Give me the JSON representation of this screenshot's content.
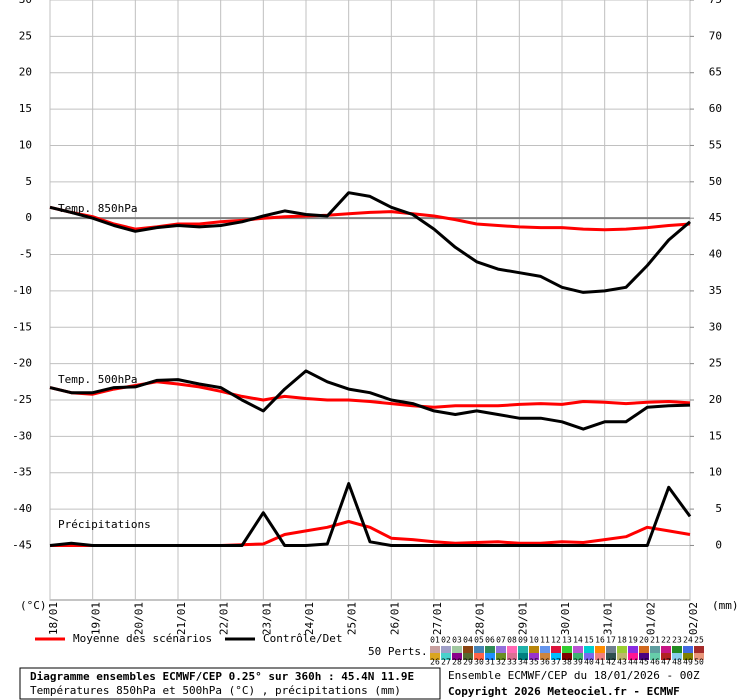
{
  "chart_data": {
    "type": "line",
    "title": "Diagramme ensembles ECMWF/CEP 0.25° sur 360h : 45.4N 11.9E",
    "subtitle": "Températures 850hPa et 500hPa (°C) , précipitations (mm)",
    "run_label": "Ensemble ECMWF/CEP du 18/01/2026 - 00Z",
    "copyright": "Copyright 2026 Meteociel.fr - ECMWF",
    "y_label": "(°C)",
    "y2_label": "(mm)",
    "annotations": [
      "Temp. 850hPa",
      "Temp. 500hPa",
      "Précipitations"
    ],
    "members_label": "50 Perts.",
    "members": [
      {
        "label": "01",
        "color": "#c8a0a0"
      },
      {
        "label": "02",
        "color": "#a0a0c8"
      },
      {
        "label": "03",
        "color": "#a0c8a0"
      },
      {
        "label": "04",
        "color": "#8b4513"
      },
      {
        "label": "05",
        "color": "#4682b4"
      },
      {
        "label": "06",
        "color": "#2e8b57"
      },
      {
        "label": "07",
        "color": "#9370db"
      },
      {
        "label": "08",
        "color": "#ff69b4"
      },
      {
        "label": "09",
        "color": "#20b2aa"
      },
      {
        "label": "10",
        "color": "#b8860b"
      },
      {
        "label": "11",
        "color": "#6495ed"
      },
      {
        "label": "12",
        "color": "#dc143c"
      },
      {
        "label": "13",
        "color": "#32cd32"
      },
      {
        "label": "14",
        "color": "#ba55d3"
      },
      {
        "label": "15",
        "color": "#00ced1"
      },
      {
        "label": "16",
        "color": "#ff8c00"
      },
      {
        "label": "17",
        "color": "#708090"
      },
      {
        "label": "18",
        "color": "#9acd32"
      },
      {
        "label": "19",
        "color": "#8a2be2"
      },
      {
        "label": "20",
        "color": "#d2691e"
      },
      {
        "label": "21",
        "color": "#5f9ea0"
      },
      {
        "label": "22",
        "color": "#c71585"
      },
      {
        "label": "23",
        "color": "#228b22"
      },
      {
        "label": "24",
        "color": "#4169e1"
      },
      {
        "label": "25",
        "color": "#a52a2a"
      },
      {
        "label": "26",
        "color": "#daa520"
      },
      {
        "label": "27",
        "color": "#48d1cc"
      },
      {
        "label": "28",
        "color": "#8b008b"
      },
      {
        "label": "29",
        "color": "#556b2f"
      },
      {
        "label": "30",
        "color": "#ff6347"
      },
      {
        "label": "31",
        "color": "#1e90ff"
      },
      {
        "label": "32",
        "color": "#6b8e23"
      },
      {
        "label": "33",
        "color": "#db7093"
      },
      {
        "label": "34",
        "color": "#008080"
      },
      {
        "label": "35",
        "color": "#9932cc"
      },
      {
        "label": "36",
        "color": "#cd853f"
      },
      {
        "label": "37",
        "color": "#00bfff"
      },
      {
        "label": "38",
        "color": "#800000"
      },
      {
        "label": "39",
        "color": "#3cb371"
      },
      {
        "label": "40",
        "color": "#7b68ee"
      },
      {
        "label": "41",
        "color": "#f08080"
      },
      {
        "label": "42",
        "color": "#2f4f4f"
      },
      {
        "label": "43",
        "color": "#bdb76b"
      },
      {
        "label": "44",
        "color": "#ff1493"
      },
      {
        "label": "45",
        "color": "#4b0082"
      },
      {
        "label": "46",
        "color": "#66cdaa"
      },
      {
        "label": "47",
        "color": "#b22222"
      },
      {
        "label": "48",
        "color": "#87ceeb"
      },
      {
        "label": "49",
        "color": "#808000"
      },
      {
        "label": "50",
        "color": "#e9967a"
      }
    ],
    "x": [
      0,
      12,
      24,
      36,
      48,
      60,
      72,
      84,
      96,
      108,
      120,
      132,
      144,
      156,
      168,
      180,
      192,
      204,
      216,
      228,
      240,
      252,
      264,
      276,
      288,
      300,
      312,
      324,
      336,
      348,
      360
    ],
    "xlim": [
      0,
      360
    ],
    "xticks": [
      {
        "value": 0,
        "label": "18/01"
      },
      {
        "value": 24,
        "label": "19/01"
      },
      {
        "value": 48,
        "label": "20/01"
      },
      {
        "value": 72,
        "label": "21/01"
      },
      {
        "value": 96,
        "label": "22/01"
      },
      {
        "value": 120,
        "label": "23/01"
      },
      {
        "value": 144,
        "label": "24/01"
      },
      {
        "value": 168,
        "label": "25/01"
      },
      {
        "value": 192,
        "label": "26/01"
      },
      {
        "value": 216,
        "label": "27/01"
      },
      {
        "value": 240,
        "label": "28/01"
      },
      {
        "value": 264,
        "label": "29/01"
      },
      {
        "value": 288,
        "label": "30/01"
      },
      {
        "value": 312,
        "label": "31/01"
      },
      {
        "value": 336,
        "label": "01/02"
      },
      {
        "value": 360,
        "label": "02/02"
      }
    ],
    "ylim": [
      -52.5,
      30
    ],
    "yticks": [
      30,
      25,
      20,
      15,
      10,
      5,
      0,
      -5,
      -10,
      -15,
      -20,
      -25,
      -30,
      -35,
      -40,
      -45
    ],
    "y2lim": [
      -7.5,
      75
    ],
    "y2ticks": [
      75,
      70,
      65,
      60,
      55,
      50,
      45,
      40,
      35,
      30,
      25,
      20,
      15,
      10,
      5,
      0
    ],
    "grid": true,
    "series": [
      {
        "name": "Moyenne des scénarios",
        "color": "#ff0000",
        "values": [
          1.5,
          0.8,
          0.2,
          -0.8,
          -1.5,
          -1.2,
          -0.8,
          -0.8,
          -0.5,
          -0.3,
          0,
          0.2,
          0.3,
          0.4,
          0.6,
          0.8,
          0.9,
          0.6,
          0.3,
          -0.2,
          -0.8,
          -1.0,
          -1.2,
          -1.3,
          -1.3,
          -1.5,
          -1.6,
          -1.5,
          -1.3,
          -1.0,
          -0.8
        ]
      },
      {
        "name": "Contrôle/Det",
        "color": "#000000",
        "values": [
          1.5,
          0.8,
          0.0,
          -1.0,
          -1.8,
          -1.3,
          -1.0,
          -1.2,
          -1.0,
          -0.5,
          0.3,
          1.0,
          0.5,
          0.3,
          3.5,
          3.0,
          1.5,
          0.5,
          -1.5,
          -4.0,
          -6.0,
          -7.0,
          -7.5,
          -8.0,
          -9.5,
          -10.2,
          -10.0,
          -9.5,
          -6.5,
          -3.0,
          -0.5
        ]
      },
      {
        "name": "Moyenne des scénarios",
        "color": "#ff0000",
        "values": [
          -23.3,
          -24.0,
          -24.2,
          -23.5,
          -23.0,
          -22.5,
          -22.8,
          -23.2,
          -23.8,
          -24.5,
          -25.0,
          -24.5,
          -24.8,
          -25.0,
          -25.0,
          -25.2,
          -25.5,
          -25.8,
          -26,
          -25.8,
          -25.8,
          -25.8,
          -25.6,
          -25.5,
          -25.6,
          -25.2,
          -25.3,
          -25.5,
          -25.3,
          -25.2,
          -25.4
        ]
      },
      {
        "name": "Contrôle/Det",
        "color": "#000000",
        "values": [
          -23.3,
          -24.0,
          -24.0,
          -23.3,
          -23.2,
          -22.3,
          -22.2,
          -22.8,
          -23.3,
          -25.0,
          -26.5,
          -23.5,
          -21,
          -22.5,
          -23.5,
          -24,
          -25,
          -25.5,
          -26.5,
          -27,
          -26.5,
          -27,
          -27.5,
          -27.5,
          -28,
          -29,
          -28,
          -28,
          -26,
          -25.8,
          -25.7
        ]
      },
      {
        "name": "Moyenne des scénarios",
        "color": "#ff0000",
        "axis": "y2",
        "values": [
          0,
          0,
          0,
          0,
          0,
          0,
          0,
          0,
          0,
          0.1,
          0.2,
          1.5,
          2,
          2.5,
          3.3,
          2.5,
          1,
          0.8,
          0.5,
          0.3,
          0.4,
          0.5,
          0.3,
          0.3,
          0.5,
          0.4,
          0.8,
          1.2,
          2.5,
          2.0,
          1.5
        ]
      },
      {
        "name": "Contrôle/Det",
        "color": "#000000",
        "axis": "y2",
        "values": [
          0,
          0.3,
          0,
          0,
          0,
          0,
          0,
          0,
          0,
          0,
          4.5,
          0,
          0,
          0.2,
          8.5,
          0.5,
          0,
          0,
          0,
          0,
          0,
          0,
          0,
          0,
          0,
          0,
          0,
          0,
          0,
          8,
          4
        ]
      }
    ]
  }
}
